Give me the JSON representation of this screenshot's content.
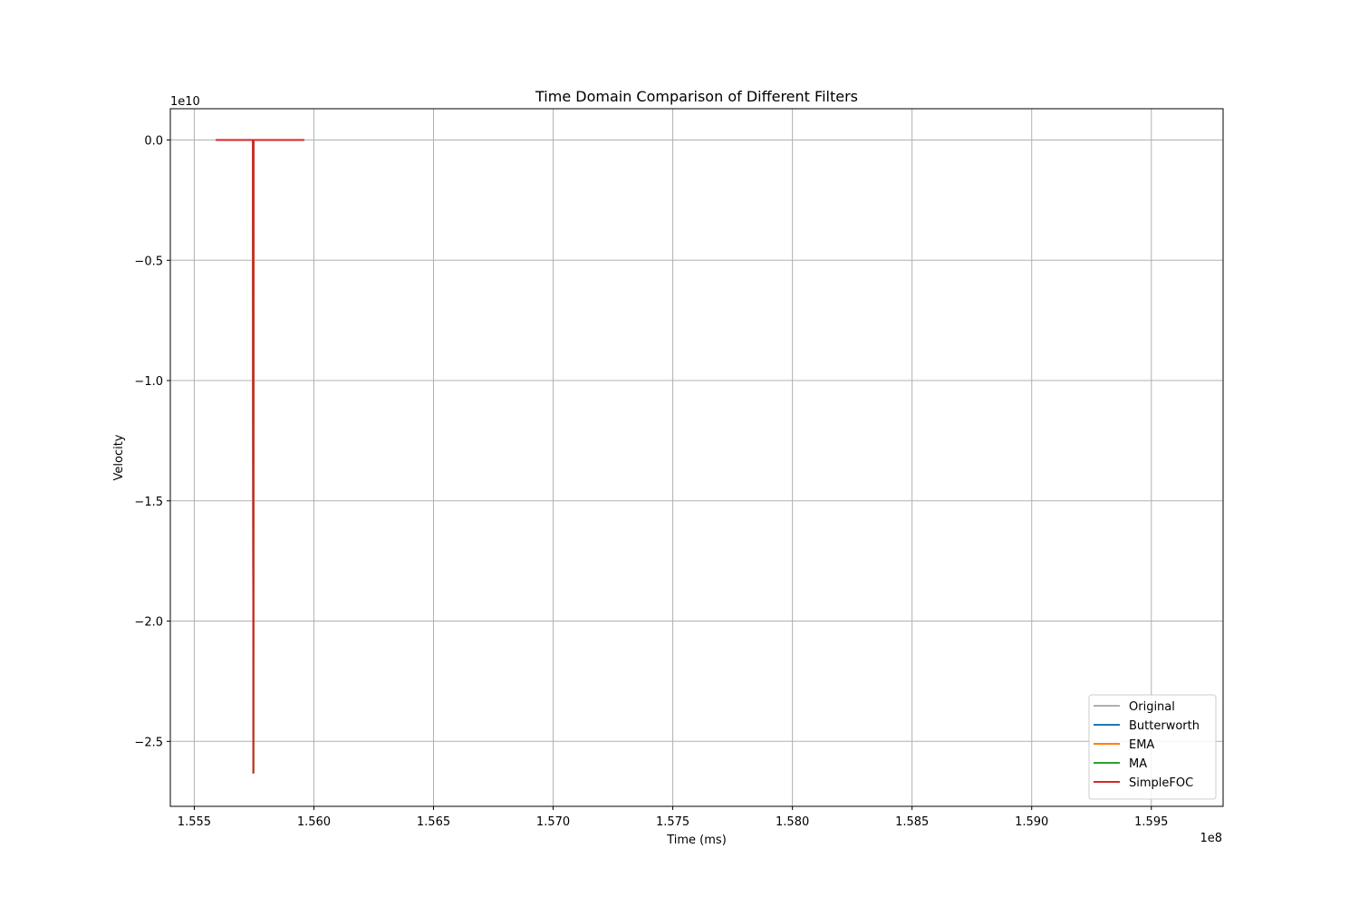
{
  "chart_data": {
    "type": "line",
    "title": "Time Domain Comparison of Different Filters",
    "xlabel": "Time (ms)",
    "ylabel": "Velocity",
    "x_offset_text": "1e8",
    "y_offset_text": "1e10",
    "xlim": [
      1.554,
      1.598
    ],
    "ylim": [
      -2.77,
      0.13
    ],
    "x_ticks": [
      1.555,
      1.56,
      1.565,
      1.57,
      1.575,
      1.58,
      1.585,
      1.59,
      1.595
    ],
    "x_tick_labels": [
      "1.555",
      "1.560",
      "1.565",
      "1.570",
      "1.575",
      "1.580",
      "1.585",
      "1.590",
      "1.595"
    ],
    "y_ticks": [
      0.0,
      -0.5,
      -1.0,
      -1.5,
      -2.0,
      -2.5
    ],
    "y_tick_labels": [
      "0.0",
      "−0.5",
      "−1.0",
      "−1.5",
      "−2.0",
      "−2.5"
    ],
    "grid": true,
    "legend_position": "lower-right",
    "series": [
      {
        "name": "Original",
        "color": "#b0b0b0",
        "x": [
          1.5559,
          1.55745,
          1.55747,
          1.55748,
          1.5596
        ],
        "y": [
          0.0,
          0.0,
          -2.63,
          0.0,
          0.0
        ]
      },
      {
        "name": "Butterworth",
        "color": "#1f77b4",
        "x": [
          1.5559,
          1.55745,
          1.55747,
          1.55748,
          1.5596
        ],
        "y": [
          0.0,
          0.0,
          -2.63,
          0.0,
          0.0
        ]
      },
      {
        "name": "EMA",
        "color": "#ff7f0e",
        "x": [
          1.5559,
          1.55745,
          1.55747,
          1.55748,
          1.5596
        ],
        "y": [
          0.0,
          0.0,
          -2.63,
          0.0,
          0.0
        ]
      },
      {
        "name": "MA",
        "color": "#2ca02c",
        "x": [
          1.5559,
          1.55745,
          1.55747,
          1.55748,
          1.5596
        ],
        "y": [
          0.0,
          0.0,
          -2.63,
          0.0,
          0.0
        ]
      },
      {
        "name": "SimpleFOC",
        "color": "#d62728",
        "x": [
          1.5559,
          1.55745,
          1.55747,
          1.55748,
          1.5596
        ],
        "y": [
          0.0,
          0.0,
          -2.63,
          0.0,
          0.0
        ]
      }
    ]
  }
}
